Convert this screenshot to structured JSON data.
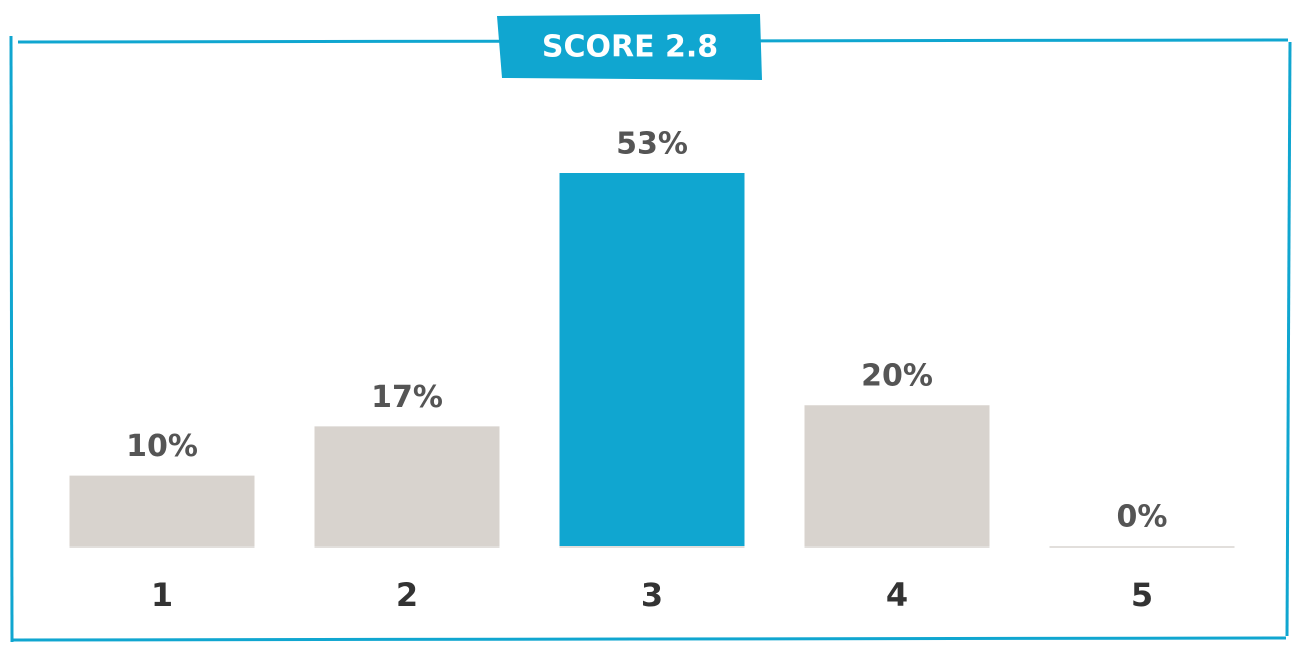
{
  "chart_data": {
    "type": "bar",
    "title": "SCORE 2.8",
    "categories": [
      "1",
      "2",
      "3",
      "4",
      "5"
    ],
    "values": [
      10,
      17,
      53,
      20,
      0
    ],
    "value_labels": [
      "10%",
      "17%",
      "53%",
      "20%",
      "0%"
    ],
    "colors": [
      "#d8d3ce",
      "#d8d3ce",
      "#10a6d0",
      "#d8d3ce",
      "#d8d3ce"
    ]
  }
}
